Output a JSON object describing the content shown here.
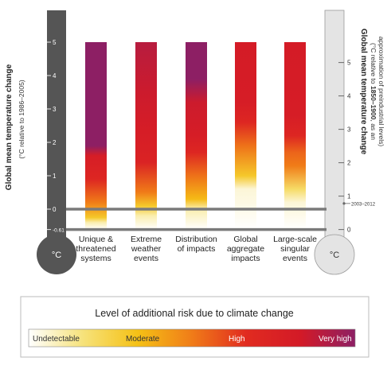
{
  "chart_data": {
    "type": "bar",
    "title": "",
    "left_axis": {
      "title": "Global mean temperature change",
      "subtitle": "(°C relative to 1986–2005)",
      "ticks": [
        "5",
        "4",
        "3",
        "2",
        "1",
        "0",
        "-0.61"
      ],
      "tick_values": [
        5,
        4,
        3,
        2,
        1,
        0,
        -0.61
      ],
      "ylim": [
        -0.61,
        5
      ],
      "thermometer_label": "°C",
      "color": "#555555"
    },
    "right_axis": {
      "title": "Global mean temperature change",
      "subtitle_prefix": "(°C relative to ",
      "subtitle_bold": "1850–1900",
      "subtitle_suffix": ", as an",
      "subtitle_line2": "approximation of preindustrial levels)",
      "ticks": [
        "5",
        "4",
        "3",
        "2",
        "1",
        "0"
      ],
      "tick_values": [
        5,
        4,
        3,
        2,
        1,
        0
      ],
      "offset": 0.61,
      "thermometer_label": "°C",
      "color": "#dddddd",
      "marker_label": "2003–2012",
      "marker_value": 0.78
    },
    "categories": [
      [
        "Unique &",
        "threatened",
        "systems"
      ],
      [
        "Extreme",
        "weather",
        "events"
      ],
      [
        "Distribution",
        "of impacts"
      ],
      [
        "Global",
        "aggregate",
        "impacts"
      ],
      [
        "Large-scale",
        "singular",
        "events"
      ]
    ],
    "bars": [
      {
        "stops": [
          {
            "t": -0.4,
            "risk": 0.1
          },
          {
            "t": -0.25,
            "risk": 0.3
          },
          {
            "t": 0.2,
            "risk": 0.5
          },
          {
            "t": 0.9,
            "risk": 0.72
          },
          {
            "t": 1.6,
            "risk": 0.8
          },
          {
            "t": 1.9,
            "risk": 1.0
          },
          {
            "t": 5.0,
            "risk": 1.0
          }
        ]
      },
      {
        "stops": [
          {
            "t": -0.2,
            "risk": 0.1
          },
          {
            "t": 0.1,
            "risk": 0.3
          },
          {
            "t": 0.5,
            "risk": 0.5
          },
          {
            "t": 1.4,
            "risk": 0.75
          },
          {
            "t": 2.3,
            "risk": 0.8
          },
          {
            "t": 3.5,
            "risk": 0.85
          },
          {
            "t": 5.0,
            "risk": 0.9
          }
        ]
      },
      {
        "stops": [
          {
            "t": 0.0,
            "risk": 0.1
          },
          {
            "t": 0.3,
            "risk": 0.35
          },
          {
            "t": 1.0,
            "risk": 0.52
          },
          {
            "t": 1.7,
            "risk": 0.72
          },
          {
            "t": 2.2,
            "risk": 0.8
          },
          {
            "t": 3.2,
            "risk": 0.85
          },
          {
            "t": 3.9,
            "risk": 1.0
          },
          {
            "t": 5.0,
            "risk": 1.0
          }
        ]
      },
      {
        "stops": [
          {
            "t": 0.6,
            "risk": 0.05
          },
          {
            "t": 1.0,
            "risk": 0.3
          },
          {
            "t": 1.9,
            "risk": 0.52
          },
          {
            "t": 2.6,
            "risk": 0.72
          },
          {
            "t": 3.2,
            "risk": 0.8
          },
          {
            "t": 5.0,
            "risk": 0.82
          }
        ]
      },
      {
        "stops": [
          {
            "t": 0.2,
            "risk": 0.05
          },
          {
            "t": 0.6,
            "risk": 0.2
          },
          {
            "t": 1.3,
            "risk": 0.5
          },
          {
            "t": 1.7,
            "risk": 0.55
          },
          {
            "t": 2.2,
            "risk": 0.72
          },
          {
            "t": 2.8,
            "risk": 0.8
          },
          {
            "t": 5.0,
            "risk": 0.82
          }
        ]
      }
    ],
    "legend": {
      "title": "Level of additional risk due to climate change",
      "labels": [
        "Undetectable",
        "Moderate",
        "High",
        "Very high"
      ],
      "label_colors": [
        "#333333",
        "#333333",
        "#ffffff",
        "#ffffff"
      ]
    },
    "risk_colors": [
      "#ffffff",
      "#f6e27a",
      "#f5c116",
      "#f07c18",
      "#e12b20",
      "#d31a27",
      "#8d1f64"
    ],
    "grid": false
  }
}
